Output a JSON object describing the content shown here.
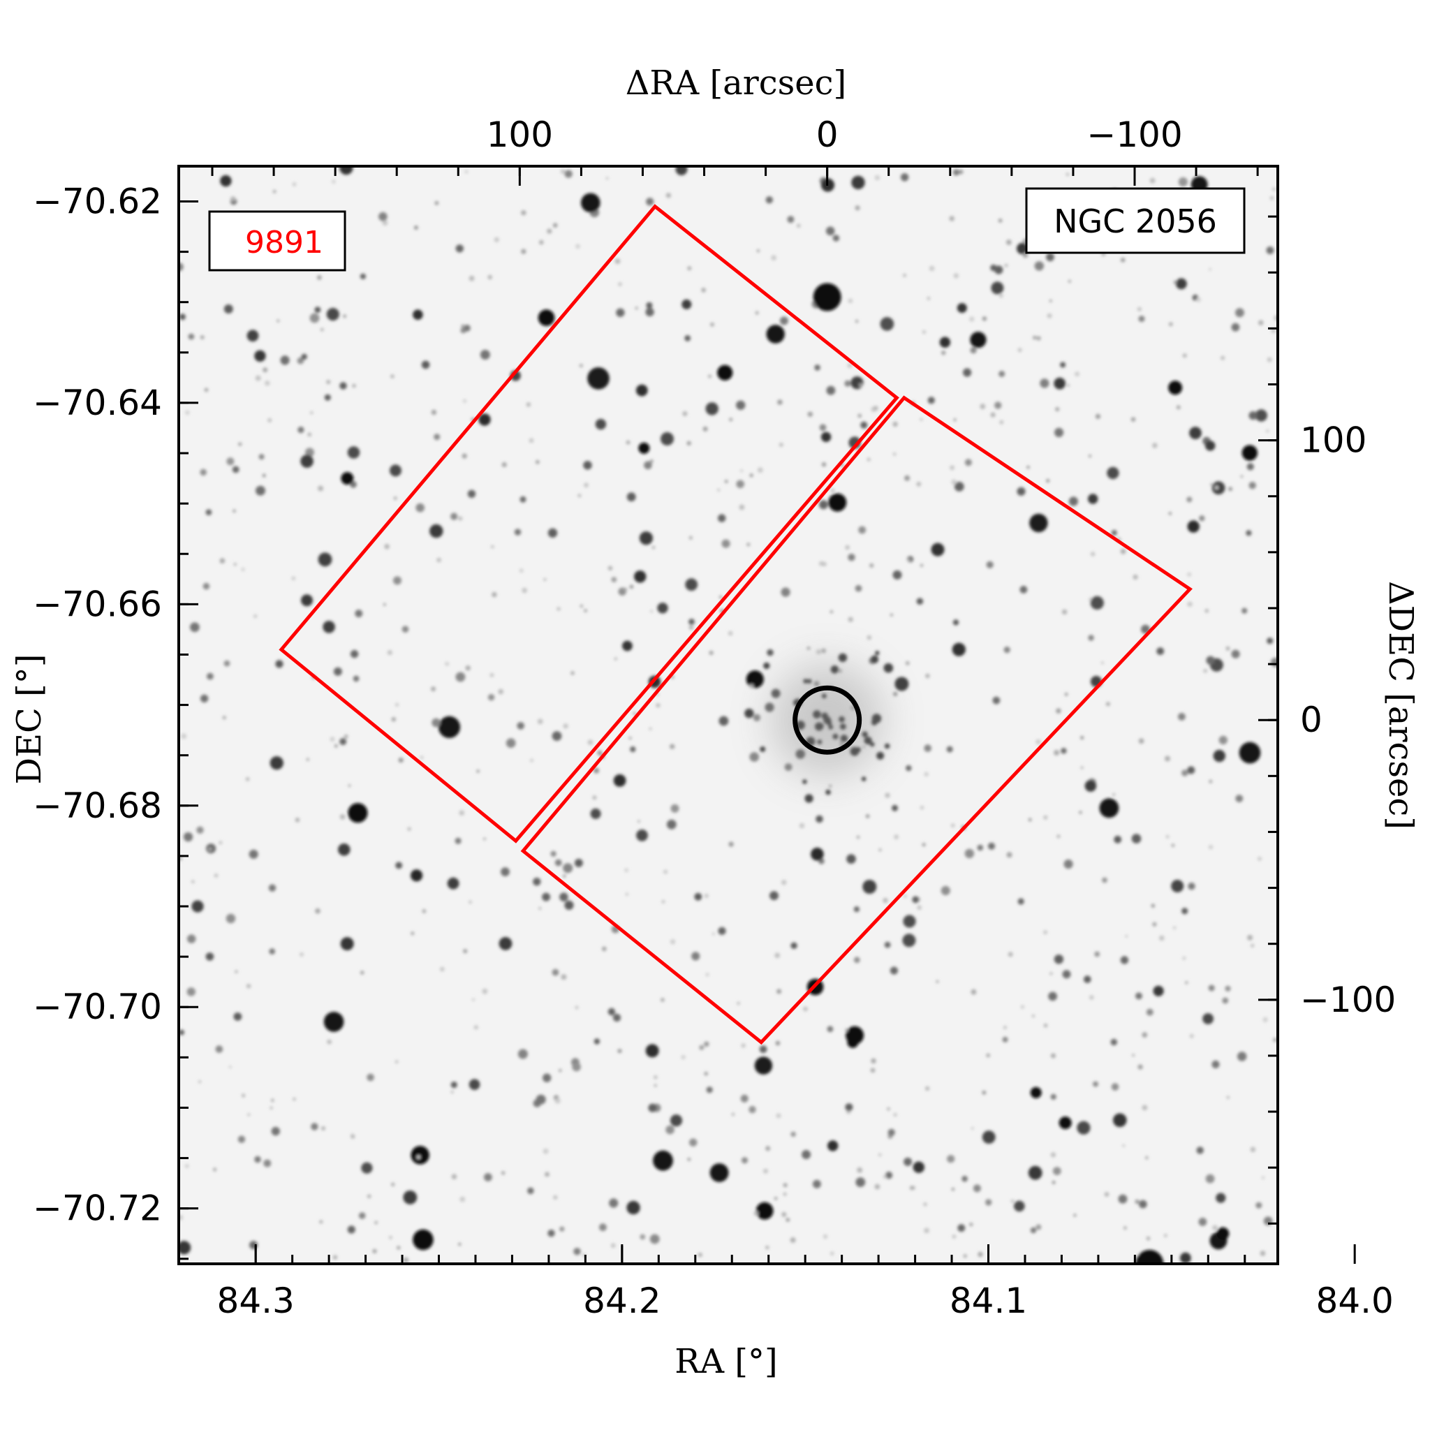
{
  "chart_data": {
    "type": "image",
    "object_label": "NGC 2056",
    "program_label": "9891",
    "program_label_color": "#ff0000",
    "footprint_color": "#ff0000",
    "background": "inverted grayscale star field",
    "bottom_axis": {
      "label": "RA [°]",
      "range": [
        84.321,
        84.021
      ],
      "ticks": [
        84.3,
        84.2,
        84.1,
        84.0
      ],
      "tick_labels": [
        "84.3",
        "84.2",
        "84.1",
        "84.0"
      ]
    },
    "left_axis": {
      "label": "DEC [°]",
      "range": [
        -70.6165,
        -70.7255
      ],
      "ticks": [
        -70.62,
        -70.64,
        -70.66,
        -70.68,
        -70.7,
        -70.72
      ],
      "tick_labels": [
        "−70.62",
        "−70.64",
        "−70.66",
        "−70.68",
        "−70.70",
        "−70.72"
      ]
    },
    "top_axis": {
      "label": "ΔRA [arcsec]",
      "ticks": [
        100,
        0,
        -100
      ],
      "tick_labels": [
        "100",
        "0",
        "−100"
      ]
    },
    "right_axis": {
      "label": "ΔDEC [arcsec]",
      "ticks": [
        100,
        0,
        -100
      ],
      "tick_labels": [
        "100",
        "0",
        "−100"
      ]
    },
    "cluster_center": {
      "ra": 84.144,
      "dec": -70.6715,
      "radius_arcsec": 12
    },
    "footprints": [
      {
        "name": "left-chip",
        "vertices": [
          [
            84.191,
            -70.6205
          ],
          [
            84.125,
            -70.6395
          ],
          [
            84.229,
            -70.6835
          ],
          [
            84.293,
            -70.6645
          ]
        ]
      },
      {
        "name": "right-chip",
        "vertices": [
          [
            84.123,
            -70.6395
          ],
          [
            84.045,
            -70.6585
          ],
          [
            84.162,
            -70.7035
          ],
          [
            84.227,
            -70.6845
          ]
        ]
      }
    ]
  }
}
